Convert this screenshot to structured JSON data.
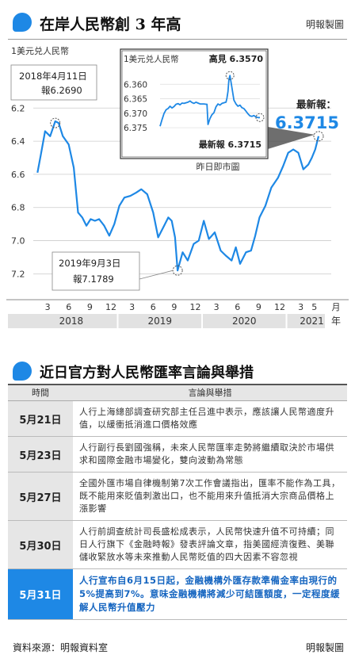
{
  "header": {
    "title": "在岸人民幣創 3 年高",
    "credit": "明報製圖"
  },
  "chart_data": [
    {
      "type": "line",
      "unit_label": "1美元兑人民幣",
      "y_axis": {
        "ticks": [
          "6.2",
          "6.4",
          "6.6",
          "6.8",
          "7.0",
          "7.2"
        ],
        "reversed": true,
        "range": [
          6.17,
          7.27
        ]
      },
      "x_axis": {
        "month_ticks": [
          "3",
          "6",
          "9",
          "12",
          "3",
          "6",
          "9",
          "12",
          "3",
          "6",
          "9",
          "12",
          "3",
          "5"
        ],
        "month_unit": "月",
        "years": [
          "2018",
          "2019",
          "2020",
          "2021"
        ],
        "year_unit": "年"
      },
      "series": [
        {
          "color": "#1e88e5",
          "x": [
            2018.05,
            2018.09,
            2018.14,
            2018.2,
            2018.26,
            2018.3,
            2018.35,
            2018.42,
            2018.48,
            2018.53,
            2018.58,
            2018.63,
            2018.68,
            2018.73,
            2018.78,
            2018.84,
            2018.9,
            2018.96,
            2019.02,
            2019.08,
            2019.15,
            2019.22,
            2019.28,
            2019.35,
            2019.42,
            2019.48,
            2019.55,
            2019.6,
            2019.64,
            2019.68,
            2019.71,
            2019.77,
            2019.83,
            2019.9,
            2019.96,
            2020.02,
            2020.08,
            2020.15,
            2020.22,
            2020.28,
            2020.35,
            2020.4,
            2020.45,
            2020.52,
            2020.58,
            2020.63,
            2020.68,
            2020.75,
            2020.82,
            2020.9,
            2020.96,
            2021.02,
            2021.08,
            2021.14,
            2021.2,
            2021.26,
            2021.3,
            2021.34,
            2021.38
          ],
          "values": [
            6.59,
            6.48,
            6.34,
            6.37,
            6.28,
            6.29,
            6.37,
            6.42,
            6.56,
            6.83,
            6.86,
            6.91,
            6.87,
            6.88,
            6.87,
            6.91,
            6.97,
            6.9,
            6.79,
            6.74,
            6.73,
            6.71,
            6.69,
            6.72,
            6.83,
            6.98,
            6.91,
            6.86,
            6.88,
            6.98,
            7.18,
            7.07,
            7.12,
            7.02,
            7.0,
            6.88,
            6.99,
            6.95,
            7.06,
            7.09,
            7.12,
            7.04,
            7.14,
            7.07,
            7.06,
            6.97,
            6.86,
            6.79,
            6.68,
            6.62,
            6.55,
            6.47,
            6.45,
            6.47,
            6.57,
            6.54,
            6.5,
            6.45,
            6.37
          ]
        }
      ],
      "annotations": [
        {
          "label": "2018年4月11日\n報6.2690"
        },
        {
          "label": "2019年9月3日\n報7.1789"
        },
        {
          "label": "最新報：",
          "value": "6.3715"
        }
      ]
    },
    {
      "type": "line",
      "unit_label": "1美元兑人民幣",
      "caption": "昨日即市圖",
      "y_axis": {
        "ticks": [
          "6.360",
          "6.365",
          "6.370",
          "6.375"
        ],
        "reversed": true,
        "range": [
          6.355,
          6.378
        ]
      },
      "series": [
        {
          "color": "#1e88e5",
          "x": [
            0.0,
            0.02,
            0.04,
            0.06,
            0.08,
            0.1,
            0.12,
            0.14,
            0.16,
            0.18,
            0.2,
            0.22,
            0.24,
            0.26,
            0.28,
            0.3,
            0.32,
            0.34,
            0.36,
            0.38,
            0.4,
            0.42,
            0.44,
            0.46,
            0.47,
            0.48,
            0.5,
            0.52,
            0.54,
            0.56,
            0.58,
            0.6,
            0.62,
            0.64,
            0.66,
            0.67,
            0.68,
            0.69,
            0.7,
            0.72,
            0.74,
            0.76,
            0.78,
            0.8,
            0.82,
            0.84,
            0.86,
            0.88,
            0.9,
            0.92,
            0.94,
            0.96,
            0.98,
            1.0
          ],
          "values": [
            6.3745,
            6.3722,
            6.3701,
            6.3688,
            6.3684,
            6.3676,
            6.3682,
            6.3677,
            6.3669,
            6.3667,
            6.3671,
            6.3665,
            6.3666,
            6.3664,
            6.3662,
            6.3658,
            6.3663,
            6.3666,
            6.3662,
            6.3665,
            6.3668,
            6.3668,
            6.3668,
            6.3669,
            6.3669,
            6.3739,
            6.3718,
            6.3705,
            6.3698,
            6.3678,
            6.3668,
            6.3672,
            6.3666,
            6.3664,
            6.3662,
            6.3648,
            6.3625,
            6.3583,
            6.357,
            6.3612,
            6.3655,
            6.3668,
            6.3676,
            6.3672,
            6.3681,
            6.3684,
            6.3693,
            6.3702,
            6.3709,
            6.3711,
            6.3708,
            6.3713,
            6.3715,
            6.3715
          ]
        }
      ],
      "annotations": [
        {
          "label": "高見",
          "value": "6.3570"
        },
        {
          "label": "最新報",
          "value": "6.3715"
        }
      ]
    }
  ],
  "section": {
    "title": "近日官方對人民幣匯率言論與舉措",
    "col_time": "時間",
    "col_desc": "言論與舉措"
  },
  "rows": [
    {
      "date": "5月21日",
      "text": "人行上海總部調查研究部主任吕進中表示，應該讓人民幣適度升值，以緩衝抵消進口價格效應"
    },
    {
      "date": "5月23日",
      "text": "人行副行長劉國強稱，未來人民幣匯率走勢將繼續取決於市場供求和國際金融市場變化，雙向波動為常態"
    },
    {
      "date": "5月27日",
      "text": "全國外匯市場自律機制第7次工作會議指出，匯率不能作為工具，既不能用來貶值刺激出口，也不能用來升值抵消大宗商品價格上漲影響"
    },
    {
      "date": "5月30日",
      "text": "人行前調查統計司長盛松成表示，人民幣快速升值不可持續；同日人行旗下《金融時報》發表評論文章，指美國經濟復甦、美聯儲收緊放水等未來推動人民幣貶值的四大因素不容忽視"
    },
    {
      "date": "5月31日",
      "text": "人行宣布自6月15日起，金融機構外匯存款準備金率由現行的5%提高到7%。意味金融機構將減少可結匯額度，一定程度緩解人民幣升值壓力"
    }
  ],
  "footer": {
    "source": "資料來源：明報資料室",
    "credit": "明報製圖"
  }
}
